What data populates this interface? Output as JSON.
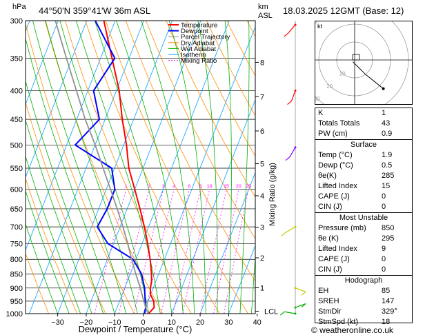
{
  "header": {
    "location": "44°50'N  359°41'W  36m  ASL",
    "datetime": "18.03.2025  12GMT  (Base: 12)",
    "hpa_unit": "hPa",
    "km_unit": "km",
    "asl_unit": "ASL"
  },
  "footer": {
    "credit": "© weatheronline.co.uk"
  },
  "chart_data": {
    "type": "line",
    "subtype": "skew-T log-P diagram",
    "xlabel": "Dewpoint / Temperature (°C)",
    "ylabel_right": "Mixing Ratio (g/kg)",
    "x_ticks": [
      -30,
      -20,
      -10,
      0,
      10,
      20,
      30,
      40
    ],
    "x_tick_labels": [
      "−30",
      "−20",
      "−10",
      "0",
      "10",
      "20",
      "30",
      "40"
    ],
    "pressure_levels": [
      300,
      350,
      400,
      450,
      500,
      550,
      600,
      650,
      700,
      750,
      800,
      850,
      900,
      950,
      1000
    ],
    "km_labels": [
      {
        "label": "8",
        "p": 356
      },
      {
        "label": "7",
        "p": 410
      },
      {
        "label": "6",
        "p": 472
      },
      {
        "label": "5",
        "p": 540
      },
      {
        "label": "4",
        "p": 616
      },
      {
        "label": "3",
        "p": 701
      },
      {
        "label": "2",
        "p": 795
      },
      {
        "label": "1",
        "p": 899
      },
      {
        "label": "LCL",
        "p": 990
      }
    ],
    "mixing_ratio_labels": [
      "1",
      "2",
      "3",
      "4",
      "6",
      "8",
      "10",
      "15",
      "20",
      "25"
    ],
    "mixing_ratio_values": [
      1,
      2,
      3,
      4,
      6,
      8,
      10,
      15,
      20,
      25
    ],
    "legend": [
      "Temperature",
      "Dewpoint",
      "Parcel Trajectory",
      "Dry Adiabat",
      "Wet Adiabat",
      "Isotherm",
      "Mixing Ratio"
    ],
    "legend_colors": [
      "#ff0000",
      "#0000ff",
      "#909090",
      "#ff8c00",
      "#00b000",
      "#00a0ff",
      "#ff00ff"
    ],
    "series": [
      {
        "name": "Temperature",
        "color": "#ff0000",
        "points": [
          [
            1000,
            1.9
          ],
          [
            975,
            3
          ],
          [
            950,
            2
          ],
          [
            925,
            0
          ],
          [
            900,
            -1
          ],
          [
            875,
            -1.5
          ],
          [
            850,
            -2.5
          ],
          [
            800,
            -5
          ],
          [
            750,
            -8
          ],
          [
            700,
            -11.5
          ],
          [
            650,
            -15.5
          ],
          [
            600,
            -20
          ],
          [
            550,
            -25
          ],
          [
            500,
            -29
          ],
          [
            450,
            -34
          ],
          [
            400,
            -39
          ],
          [
            350,
            -46
          ],
          [
            300,
            -54
          ]
        ]
      },
      {
        "name": "Dewpoint",
        "color": "#0000ff",
        "points": [
          [
            1000,
            0.5
          ],
          [
            975,
            0
          ],
          [
            950,
            -1
          ],
          [
            925,
            -2
          ],
          [
            900,
            -3
          ],
          [
            850,
            -6
          ],
          [
            800,
            -11
          ],
          [
            750,
            -22
          ],
          [
            700,
            -28
          ],
          [
            650,
            -27
          ],
          [
            600,
            -27
          ],
          [
            550,
            -31
          ],
          [
            500,
            -47
          ],
          [
            450,
            -42
          ],
          [
            400,
            -48
          ],
          [
            350,
            -45
          ],
          [
            300,
            -57
          ]
        ]
      },
      {
        "name": "Parcel Trajectory",
        "color": "#909090",
        "points": [
          [
            1000,
            1.9
          ],
          [
            990,
            1.0
          ],
          [
            950,
            -1.5
          ],
          [
            900,
            -4.5
          ],
          [
            850,
            -8
          ],
          [
            800,
            -11.5
          ],
          [
            750,
            -15
          ],
          [
            700,
            -19
          ],
          [
            650,
            -23.5
          ],
          [
            600,
            -28.5
          ],
          [
            550,
            -34
          ],
          [
            500,
            -40
          ],
          [
            450,
            -47
          ],
          [
            400,
            -54
          ],
          [
            350,
            -62
          ],
          [
            300,
            -71
          ]
        ]
      }
    ]
  },
  "hodograph": {
    "unit_label": "kt",
    "ring_labels": [
      "10",
      "20",
      "30"
    ],
    "points_kt": [
      [
        -1,
        -1
      ],
      [
        0,
        -2
      ],
      [
        2,
        -4
      ],
      [
        6,
        -8
      ],
      [
        11,
        -12
      ],
      [
        16,
        -16
      ]
    ]
  },
  "indices": {
    "general": [
      {
        "label": "K",
        "value": "1"
      },
      {
        "label": "Totals Totals",
        "value": "43"
      },
      {
        "label": "PW (cm)",
        "value": "0.9"
      }
    ],
    "surface_title": "Surface",
    "surface": [
      {
        "label": "Temp (°C)",
        "value": "1.9"
      },
      {
        "label": "Dewp (°C)",
        "value": "0.5"
      },
      {
        "label": "θe(K)",
        "value": "285"
      },
      {
        "label": "Lifted Index",
        "value": "15"
      },
      {
        "label": "CAPE (J)",
        "value": "0"
      },
      {
        "label": "CIN (J)",
        "value": "0"
      }
    ],
    "unstable_title": "Most Unstable",
    "unstable": [
      {
        "label": "Pressure (mb)",
        "value": "850"
      },
      {
        "label": "θe (K)",
        "value": "295"
      },
      {
        "label": "Lifted Index",
        "value": "9"
      },
      {
        "label": "CAPE (J)",
        "value": "0"
      },
      {
        "label": "CIN (J)",
        "value": "0"
      }
    ],
    "hodograph_title": "Hodograph",
    "hodo": [
      {
        "label": "EH",
        "value": "85"
      },
      {
        "label": "SREH",
        "value": "147"
      },
      {
        "label": "StmDir",
        "value": "329°"
      },
      {
        "label": "StmSpd (kt)",
        "value": "18"
      }
    ]
  }
}
